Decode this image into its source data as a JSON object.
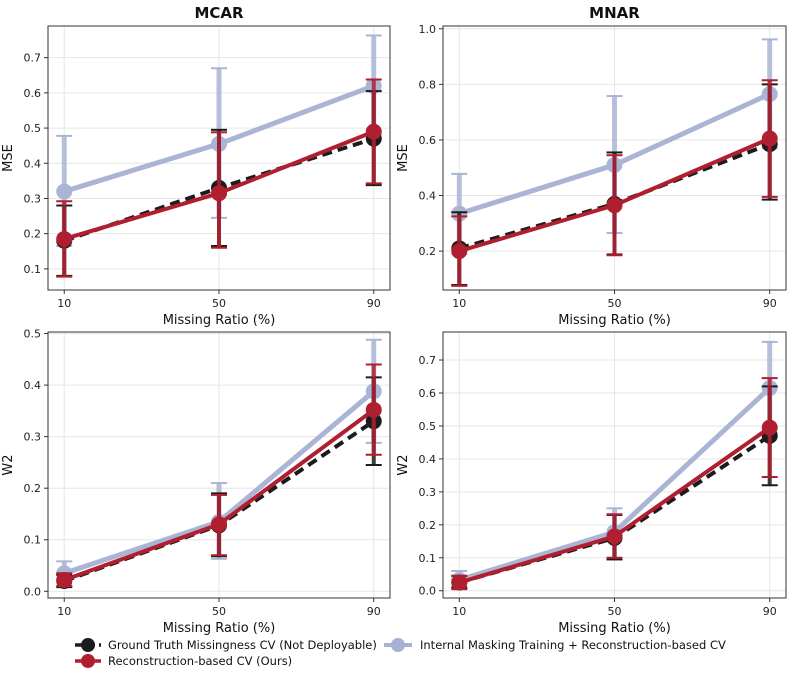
{
  "chart_data": [
    {
      "type": "line",
      "title": "MCAR",
      "xlabel": "Missing Ratio (%)",
      "ylabel": "MSE",
      "x": [
        10,
        50,
        90
      ],
      "xticks": [
        "10",
        "50",
        "90"
      ],
      "ylim": [
        0.04,
        0.79
      ],
      "yticks": [
        0.1,
        0.2,
        0.3,
        0.4,
        0.5,
        0.6,
        0.7
      ],
      "yticklabels": [
        "0.1",
        "0.2",
        "0.3",
        "0.4",
        "0.5",
        "0.6",
        "0.7"
      ],
      "series": [
        {
          "name": "Internal Masking Training + Reconstruction-based CV",
          "values": [
            0.32,
            0.455,
            0.62
          ],
          "lower": [
            0.165,
            0.245,
            0.48
          ],
          "upper": [
            0.478,
            0.67,
            0.763
          ]
        },
        {
          "name": "Ground Truth Missingness CV (Not Deployable)",
          "values": [
            0.18,
            0.33,
            0.47
          ],
          "lower": [
            0.08,
            0.165,
            0.338
          ],
          "upper": [
            0.28,
            0.495,
            0.605
          ]
        },
        {
          "name": "Reconstruction-based CV (Ours)",
          "values": [
            0.185,
            0.315,
            0.49
          ],
          "lower": [
            0.078,
            0.16,
            0.343
          ],
          "upper": [
            0.292,
            0.488,
            0.638
          ]
        }
      ]
    },
    {
      "type": "line",
      "title": "MNAR",
      "xlabel": "Missing Ratio (%)",
      "ylabel": "MSE",
      "x": [
        10,
        50,
        90
      ],
      "xticks": [
        "10",
        "50",
        "90"
      ],
      "ylim": [
        0.06,
        1.01
      ],
      "yticks": [
        0.2,
        0.4,
        0.6,
        0.8,
        1.0
      ],
      "yticklabels": [
        "0.2",
        "0.4",
        "0.6",
        "0.8",
        "1.0"
      ],
      "series": [
        {
          "name": "Internal Masking Training + Reconstruction-based CV",
          "values": [
            0.335,
            0.51,
            0.765
          ],
          "lower": [
            0.19,
            0.265,
            0.57
          ],
          "upper": [
            0.478,
            0.758,
            0.962
          ]
        },
        {
          "name": "Ground Truth Missingness CV (Not Deployable)",
          "values": [
            0.21,
            0.37,
            0.585
          ],
          "lower": [
            0.078,
            0.188,
            0.385
          ],
          "upper": [
            0.34,
            0.555,
            0.8
          ]
        },
        {
          "name": "Reconstruction-based CV (Ours)",
          "values": [
            0.2,
            0.365,
            0.605
          ],
          "lower": [
            0.075,
            0.185,
            0.395
          ],
          "upper": [
            0.325,
            0.545,
            0.815
          ]
        }
      ]
    },
    {
      "type": "line",
      "title": "",
      "xlabel": "Missing Ratio (%)",
      "ylabel": "W2",
      "x": [
        10,
        50,
        90
      ],
      "xticks": [
        "10",
        "50",
        "90"
      ],
      "ylim": [
        -0.013,
        0.503
      ],
      "yticks": [
        0.0,
        0.1,
        0.2,
        0.3,
        0.4,
        0.5
      ],
      "yticklabels": [
        "0.0",
        "0.1",
        "0.2",
        "0.3",
        "0.4",
        "0.5"
      ],
      "series": [
        {
          "name": "Internal Masking Training + Reconstruction-based CV",
          "values": [
            0.035,
            0.135,
            0.388
          ],
          "lower": [
            0.01,
            0.063,
            0.288
          ],
          "upper": [
            0.058,
            0.21,
            0.488
          ]
        },
        {
          "name": "Ground Truth Missingness CV (Not Deployable)",
          "values": [
            0.02,
            0.128,
            0.33
          ],
          "lower": [
            0.008,
            0.068,
            0.245
          ],
          "upper": [
            0.032,
            0.19,
            0.415
          ]
        },
        {
          "name": "Reconstruction-based CV (Ours)",
          "values": [
            0.022,
            0.13,
            0.352
          ],
          "lower": [
            0.01,
            0.07,
            0.265
          ],
          "upper": [
            0.035,
            0.187,
            0.44
          ]
        }
      ]
    },
    {
      "type": "line",
      "title": "",
      "xlabel": "Missing Ratio (%)",
      "ylabel": "W2",
      "x": [
        10,
        50,
        90
      ],
      "xticks": [
        "10",
        "50",
        "90"
      ],
      "ylim": [
        -0.022,
        0.785
      ],
      "yticks": [
        0.0,
        0.1,
        0.2,
        0.3,
        0.4,
        0.5,
        0.6,
        0.7
      ],
      "yticklabels": [
        "0.0",
        "0.1",
        "0.2",
        "0.3",
        "0.4",
        "0.5",
        "0.6",
        "0.7"
      ],
      "series": [
        {
          "name": "Internal Masking Training + Reconstruction-based CV",
          "values": [
            0.033,
            0.178,
            0.615
          ],
          "lower": [
            0.005,
            0.1,
            0.48
          ],
          "upper": [
            0.06,
            0.25,
            0.755
          ]
        },
        {
          "name": "Ground Truth Missingness CV (Not Deployable)",
          "values": [
            0.025,
            0.16,
            0.47
          ],
          "lower": [
            0.01,
            0.095,
            0.32
          ],
          "upper": [
            0.045,
            0.23,
            0.62
          ]
        },
        {
          "name": "Reconstruction-based CV (Ours)",
          "values": [
            0.025,
            0.165,
            0.495
          ],
          "lower": [
            0.005,
            0.1,
            0.345
          ],
          "upper": [
            0.045,
            0.232,
            0.645
          ]
        }
      ]
    }
  ],
  "legend": {
    "items": [
      "Ground Truth Missingness CV (Not Deployable)",
      "Reconstruction-based CV (Ours)",
      "Internal Masking Training + Reconstruction-based CV"
    ]
  },
  "colors": {
    "gt": "#1c1c1c",
    "ours": "#b01f30",
    "masking": "#a6b2d3"
  }
}
